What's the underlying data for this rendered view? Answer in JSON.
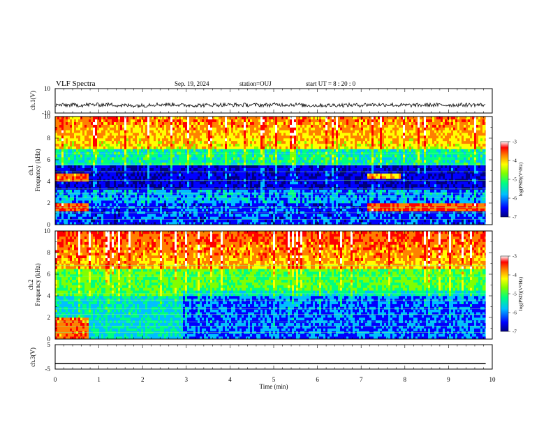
{
  "header": {
    "title": "VLF Spectra",
    "date": "Sep. 19, 2024",
    "station": "station=OUJ",
    "start_ut": "start UT = 8 : 20 : 0"
  },
  "colors": {
    "colormap": [
      "#00007f",
      "#0000ff",
      "#00bfff",
      "#00ff80",
      "#80ff00",
      "#ffff00",
      "#ff8000",
      "#ff0000",
      "#ffffff"
    ]
  },
  "chart_data": [
    {
      "type": "line",
      "id": "ch1-waveform",
      "ylabel": "ch.1(V)",
      "ylim": [
        -10,
        10
      ],
      "yticks": [
        "10",
        "-10"
      ],
      "series": [
        {
          "values": [
            -3.5,
            -3.2,
            -3.8,
            -3.0,
            -3.6,
            -3.3,
            -3.4,
            -3.1,
            -3.7,
            -3.5,
            -3.2,
            -3.6,
            -3.4,
            -3.3,
            -3.5
          ]
        }
      ]
    },
    {
      "type": "heatmap",
      "id": "ch1-spectrogram",
      "ylabel": "ch.1\nFrequency (kHz)",
      "ylim": [
        0,
        10
      ],
      "yticks": [
        "0",
        "2",
        "4",
        "6",
        "8",
        "10"
      ],
      "colorbar": {
        "label": "log(PSD)(V²/Hz)",
        "range": [
          -7,
          -3
        ],
        "ticks": [
          "-3",
          "-4",
          "-5",
          "-6",
          "-7"
        ]
      }
    },
    {
      "type": "heatmap",
      "id": "ch2-spectrogram",
      "ylabel": "ch.2\nFrequency (kHz)",
      "ylim": [
        0,
        10
      ],
      "yticks": [
        "0",
        "2",
        "4",
        "6",
        "8",
        "10"
      ],
      "colorbar": {
        "label": "log(PSD)(V²/Hz)",
        "range": [
          -7,
          -3
        ],
        "ticks": [
          "-3",
          "-4",
          "-5",
          "-6",
          "-7"
        ]
      }
    },
    {
      "type": "line",
      "id": "ch3-waveform",
      "ylabel": "ch.3(V)",
      "ylim": [
        -5,
        5
      ],
      "yticks": [
        "5",
        "-5"
      ],
      "series": [
        {
          "values": [
            -2.7,
            -2.7,
            -2.7,
            -2.7,
            -2.7,
            -2.7,
            -2.7,
            -2.7,
            -2.7,
            -2.7,
            -2.7
          ]
        }
      ]
    }
  ],
  "xaxis": {
    "label": "Time (min)",
    "ticks": [
      "0",
      "1",
      "2",
      "3",
      "4",
      "5",
      "6",
      "7",
      "8",
      "9",
      "10"
    ],
    "range": [
      0,
      10
    ],
    "data_end": 9.85
  }
}
